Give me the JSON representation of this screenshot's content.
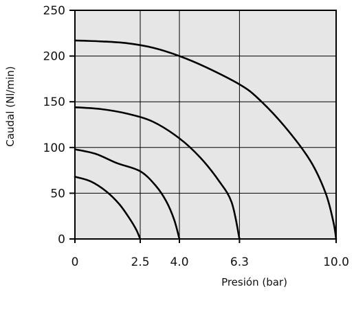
{
  "chart_data": {
    "type": "line",
    "title": "",
    "xlabel": "Presión (bar)",
    "ylabel": "Caudal (Nl/min)",
    "xlim": [
      0,
      10
    ],
    "ylim": [
      0,
      250
    ],
    "grid": true,
    "x_ticks": [
      0,
      2.5,
      4.0,
      6.3,
      10.0
    ],
    "x_tick_labels": [
      "0",
      "2.5",
      "4.0",
      "6.3",
      "10.0"
    ],
    "y_ticks": [
      0,
      50,
      100,
      150,
      200,
      250
    ],
    "y_tick_labels": [
      "0",
      "50",
      "100",
      "150",
      "200",
      "250"
    ],
    "series": [
      {
        "points": [
          [
            0,
            68
          ],
          [
            0.6,
            63
          ],
          [
            1.2,
            52
          ],
          [
            1.7,
            38
          ],
          [
            2.1,
            22
          ],
          [
            2.35,
            10
          ],
          [
            2.5,
            0
          ]
        ]
      },
      {
        "points": [
          [
            0,
            98
          ],
          [
            0.8,
            93
          ],
          [
            1.6,
            83
          ],
          [
            2.5,
            74
          ],
          [
            3.1,
            58
          ],
          [
            3.5,
            41
          ],
          [
            3.8,
            21
          ],
          [
            4.0,
            0
          ]
        ]
      },
      {
        "points": [
          [
            0,
            144
          ],
          [
            1.0,
            142
          ],
          [
            2.0,
            137
          ],
          [
            3.0,
            128
          ],
          [
            4.0,
            110
          ],
          [
            4.8,
            89
          ],
          [
            5.5,
            64
          ],
          [
            6.0,
            40
          ],
          [
            6.3,
            0
          ]
        ]
      },
      {
        "points": [
          [
            0,
            217
          ],
          [
            1.0,
            216
          ],
          [
            2.0,
            214
          ],
          [
            3.0,
            209
          ],
          [
            4.0,
            200
          ],
          [
            5.0,
            188
          ],
          [
            6.3,
            169
          ],
          [
            7.0,
            154
          ],
          [
            8.0,
            124
          ],
          [
            9.0,
            86
          ],
          [
            9.6,
            50
          ],
          [
            9.9,
            18
          ],
          [
            10.0,
            0
          ]
        ]
      }
    ]
  }
}
